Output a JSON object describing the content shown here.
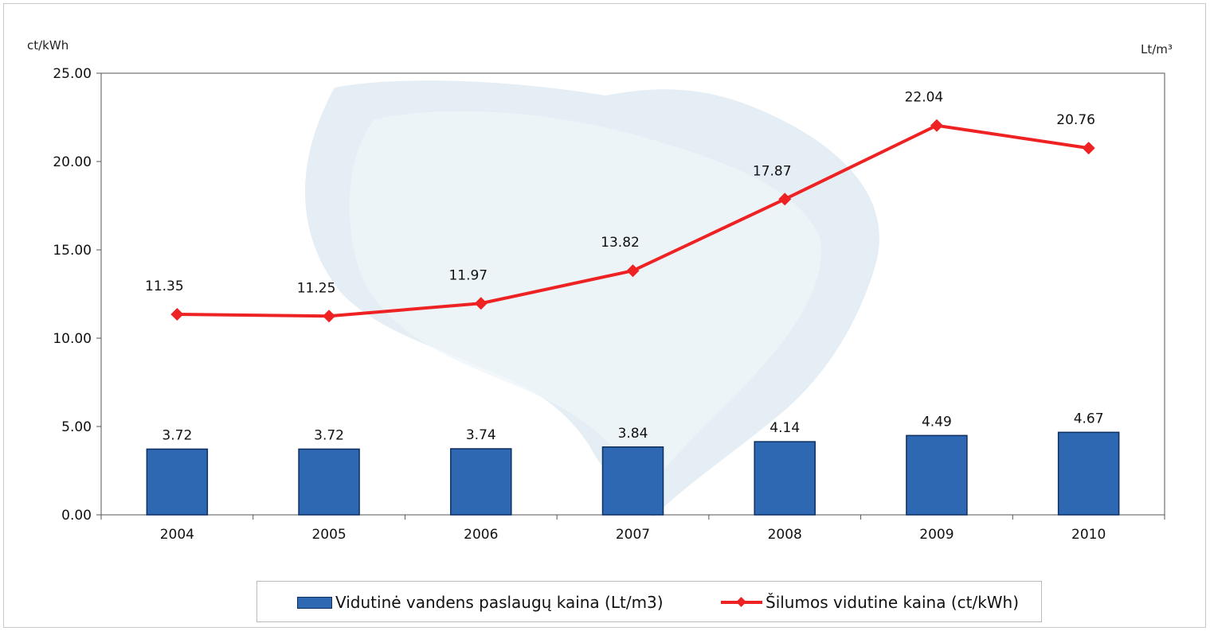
{
  "chart_data": {
    "type": "bar+line",
    "categories": [
      "2004",
      "2005",
      "2006",
      "2007",
      "2008",
      "2009",
      "2010"
    ],
    "series": [
      {
        "name": "Vidutinė vandens paslaugų kaina (Lt/m3)",
        "type": "bar",
        "color": "#2e67b2",
        "values": [
          3.72,
          3.72,
          3.74,
          3.84,
          4.14,
          4.49,
          4.67
        ],
        "labels": [
          "3.72",
          "3.72",
          "3.74",
          "3.84",
          "4.14",
          "4.49",
          "4.67"
        ]
      },
      {
        "name": "Šilumos vidutine kaina (ct/kWh)",
        "type": "line",
        "color": "#ee2222",
        "values": [
          11.35,
          11.25,
          11.97,
          13.82,
          17.87,
          22.04,
          20.76
        ],
        "labels": [
          "11.35",
          "11.25",
          "11.97",
          "13.82",
          "17.87",
          "22.04",
          "20.76"
        ]
      }
    ],
    "yticks": [
      "0.00",
      "5.00",
      "10.00",
      "15.00",
      "20.00",
      "25.00"
    ],
    "ylim": [
      0,
      25
    ],
    "ylabel_left": "ct/kWh",
    "ylabel_right": "Lt/m³",
    "grid": false,
    "legend_position": "bottom"
  }
}
